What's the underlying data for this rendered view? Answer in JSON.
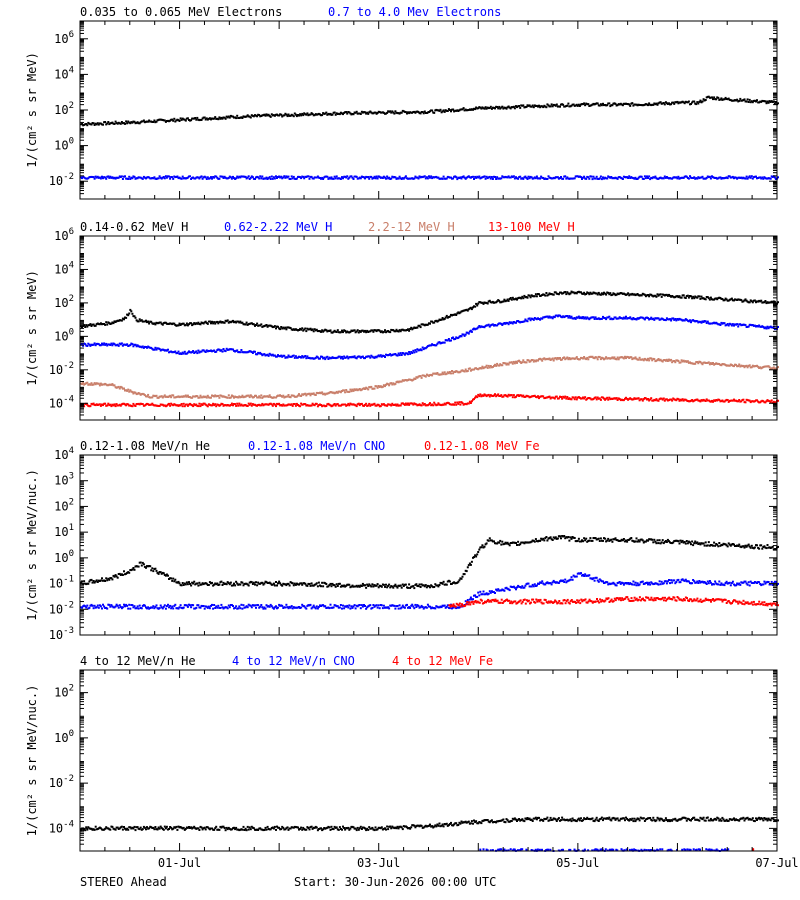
{
  "footer": {
    "spacecraft": "STEREO Ahead",
    "start": "Start: 30-Jun-2026 00:00 UTC"
  },
  "x_axis": {
    "unit": "days since 30-Jun-2026 00:00 UTC",
    "range": [
      0,
      7
    ],
    "tick_labels": [
      {
        "x": 1,
        "label": "01-Jul"
      },
      {
        "x": 3,
        "label": "03-Jul"
      },
      {
        "x": 5,
        "label": "05-Jul"
      },
      {
        "x": 7,
        "label": "07-Jul"
      }
    ]
  },
  "chart_data": [
    {
      "type": "scatter",
      "name": "electrons",
      "ylabel": "1/(cm² s sr MeV)",
      "ylim_log10": [
        -3,
        7
      ],
      "y_ticks_exp": [
        -2,
        0,
        2,
        4,
        6
      ],
      "y_scale": "log",
      "legend_placement": "top-left",
      "series": [
        {
          "name": "0.035 to 0.065 MeV Electrons",
          "color": "#000000",
          "x": [
            0,
            0.5,
            1,
            1.5,
            2,
            2.5,
            3,
            3.5,
            4,
            4.5,
            5,
            5.5,
            6,
            6.2,
            6.3,
            6.5,
            7
          ],
          "log_y": [
            1.2,
            1.3,
            1.45,
            1.6,
            1.7,
            1.8,
            1.85,
            1.9,
            2.1,
            2.2,
            2.3,
            2.3,
            2.4,
            2.4,
            2.7,
            2.6,
            2.4
          ]
        },
        {
          "name": "0.7 to 4.0 Mev Electrons",
          "color": "#0000ff",
          "x": [
            0,
            1,
            2,
            3,
            4,
            5,
            6,
            7
          ],
          "log_y": [
            -1.8,
            -1.8,
            -1.8,
            -1.8,
            -1.8,
            -1.8,
            -1.8,
            -1.8
          ]
        }
      ]
    },
    {
      "type": "scatter",
      "name": "protons",
      "ylabel": "1/(cm² s sr MeV)",
      "ylim_log10": [
        -5,
        6
      ],
      "y_ticks_exp": [
        -4,
        -2,
        0,
        2,
        4,
        6
      ],
      "y_scale": "log",
      "legend_placement": "top-left",
      "series": [
        {
          "name": "0.14-0.62 MeV H",
          "color": "#000000",
          "x": [
            0,
            0.3,
            0.45,
            0.5,
            0.55,
            0.7,
            1,
            1.5,
            2,
            2.5,
            3,
            3.3,
            3.5,
            3.7,
            3.9,
            4.0,
            4.2,
            4.5,
            4.8,
            5,
            5.5,
            6,
            6.5,
            7
          ],
          "log_y": [
            0.6,
            0.8,
            1.1,
            1.6,
            1.0,
            0.8,
            0.7,
            0.9,
            0.5,
            0.3,
            0.3,
            0.4,
            0.8,
            1.2,
            1.6,
            2.0,
            2.1,
            2.4,
            2.6,
            2.6,
            2.5,
            2.4,
            2.2,
            2.0
          ]
        },
        {
          "name": "0.62-2.22 MeV H",
          "color": "#0000ff",
          "x": [
            0,
            0.5,
            1,
            1.5,
            2,
            2.5,
            3,
            3.3,
            3.5,
            3.7,
            3.9,
            4.0,
            4.2,
            4.5,
            4.8,
            5,
            5.5,
            6,
            6.5,
            7
          ],
          "log_y": [
            -0.5,
            -0.5,
            -1.0,
            -0.8,
            -1.2,
            -1.3,
            -1.2,
            -1.0,
            -0.6,
            -0.2,
            0.2,
            0.6,
            0.7,
            1.0,
            1.2,
            1.1,
            1.1,
            1.0,
            0.7,
            0.5
          ]
        },
        {
          "name": "2.2-12 MeV H",
          "color": "#c97f6a",
          "x": [
            0,
            0.3,
            0.5,
            0.7,
            1,
            1.5,
            2,
            2.5,
            3,
            3.3,
            3.5,
            3.8,
            4.0,
            4.3,
            4.6,
            5,
            5.5,
            6,
            6.5,
            7
          ],
          "log_y": [
            -2.8,
            -2.9,
            -3.3,
            -3.6,
            -3.6,
            -3.6,
            -3.6,
            -3.4,
            -3.0,
            -2.6,
            -2.3,
            -2.1,
            -1.9,
            -1.6,
            -1.4,
            -1.3,
            -1.3,
            -1.5,
            -1.7,
            -1.9
          ]
        },
        {
          "name": "13-100 MeV H",
          "color": "#ff0000",
          "x": [
            0,
            1,
            2,
            3,
            3.9,
            4.0,
            4.5,
            5,
            6,
            7
          ],
          "log_y": [
            -4.1,
            -4.1,
            -4.1,
            -4.1,
            -4.0,
            -3.5,
            -3.6,
            -3.7,
            -3.8,
            -3.9
          ]
        }
      ]
    },
    {
      "type": "scatter",
      "name": "low-energy-ions",
      "ylabel": "1/(cm² s sr MeV/nuc.)",
      "ylim_log10": [
        -3,
        4
      ],
      "y_ticks_exp": [
        -3,
        -2,
        -1,
        0,
        1,
        2,
        3,
        4
      ],
      "y_scale": "log",
      "legend_placement": "top-left",
      "series": [
        {
          "name": "0.12-1.08 MeV/n He",
          "color": "#000000",
          "x": [
            0,
            0.3,
            0.5,
            0.6,
            1,
            2,
            3,
            3.5,
            3.8,
            3.9,
            4.0,
            4.1,
            4.3,
            4.6,
            4.8,
            5,
            5.5,
            6,
            6.5,
            7
          ],
          "log_y": [
            -1.0,
            -0.8,
            -0.5,
            -0.2,
            -1.0,
            -1.0,
            -1.1,
            -1.1,
            -0.9,
            -0.3,
            0.3,
            0.7,
            0.5,
            0.7,
            0.8,
            0.7,
            0.7,
            0.6,
            0.5,
            0.4
          ]
        },
        {
          "name": "0.12-1.08 MeV/n CNO",
          "color": "#0000ff",
          "x": [
            0,
            1,
            2,
            3,
            3.8,
            4.0,
            4.3,
            4.6,
            4.9,
            5.0,
            5.3,
            5.7,
            6.0,
            6.5,
            7
          ],
          "log_y": [
            -1.9,
            -1.9,
            -1.9,
            -1.9,
            -1.9,
            -1.4,
            -1.2,
            -1.0,
            -0.9,
            -0.6,
            -1.0,
            -1.0,
            -0.9,
            -1.0,
            -1.0
          ]
        },
        {
          "name": "0.12-1.08 MeV Fe",
          "color": "#ff0000",
          "x": [
            3.7,
            4.0,
            4.5,
            5,
            5.5,
            6,
            6.5,
            7
          ],
          "log_y": [
            -1.9,
            -1.7,
            -1.7,
            -1.7,
            -1.6,
            -1.6,
            -1.7,
            -1.8
          ]
        }
      ]
    },
    {
      "type": "scatter",
      "name": "high-energy-ions",
      "ylabel": "1/(cm² s sr MeV/nuc.)",
      "ylim_log10": [
        -5,
        3
      ],
      "y_ticks_exp": [
        -4,
        -2,
        0,
        2
      ],
      "y_scale": "log",
      "legend_placement": "top-left",
      "series": [
        {
          "name": "4 to 12 MeV/n He",
          "color": "#000000",
          "x": [
            0,
            1,
            2,
            3,
            3.5,
            4,
            4.5,
            5,
            5.5,
            6,
            6.5,
            7
          ],
          "log_y": [
            -4.0,
            -4.0,
            -4.0,
            -4.0,
            -3.9,
            -3.7,
            -3.6,
            -3.6,
            -3.6,
            -3.6,
            -3.6,
            -3.6
          ]
        },
        {
          "name": "4 to 12 MeV/n CNO",
          "color": "#0000ff",
          "x": [
            4.0,
            4.5,
            5.0,
            5.5,
            6.0,
            6.5
          ],
          "log_y": [
            -5.0,
            -5.0,
            -5.0,
            -5.0,
            -5.0,
            -5.0
          ]
        },
        {
          "name": "4 to 12 MeV Fe",
          "color": "#ff0000",
          "x": [
            6.75
          ],
          "log_y": [
            -5.0
          ]
        }
      ]
    }
  ]
}
